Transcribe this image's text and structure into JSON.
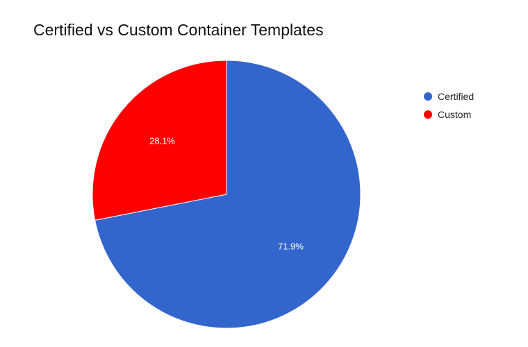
{
  "chart_data": {
    "type": "pie",
    "title": "Certified vs Custom Container Templates",
    "slices": [
      {
        "label": "Certified",
        "value": 71.9,
        "value_label": "71.9%",
        "color": "#3366cc"
      },
      {
        "label": "Custom",
        "value": 28.1,
        "value_label": "28.1%",
        "color": "#ff0000"
      }
    ],
    "legend_position": "right"
  }
}
